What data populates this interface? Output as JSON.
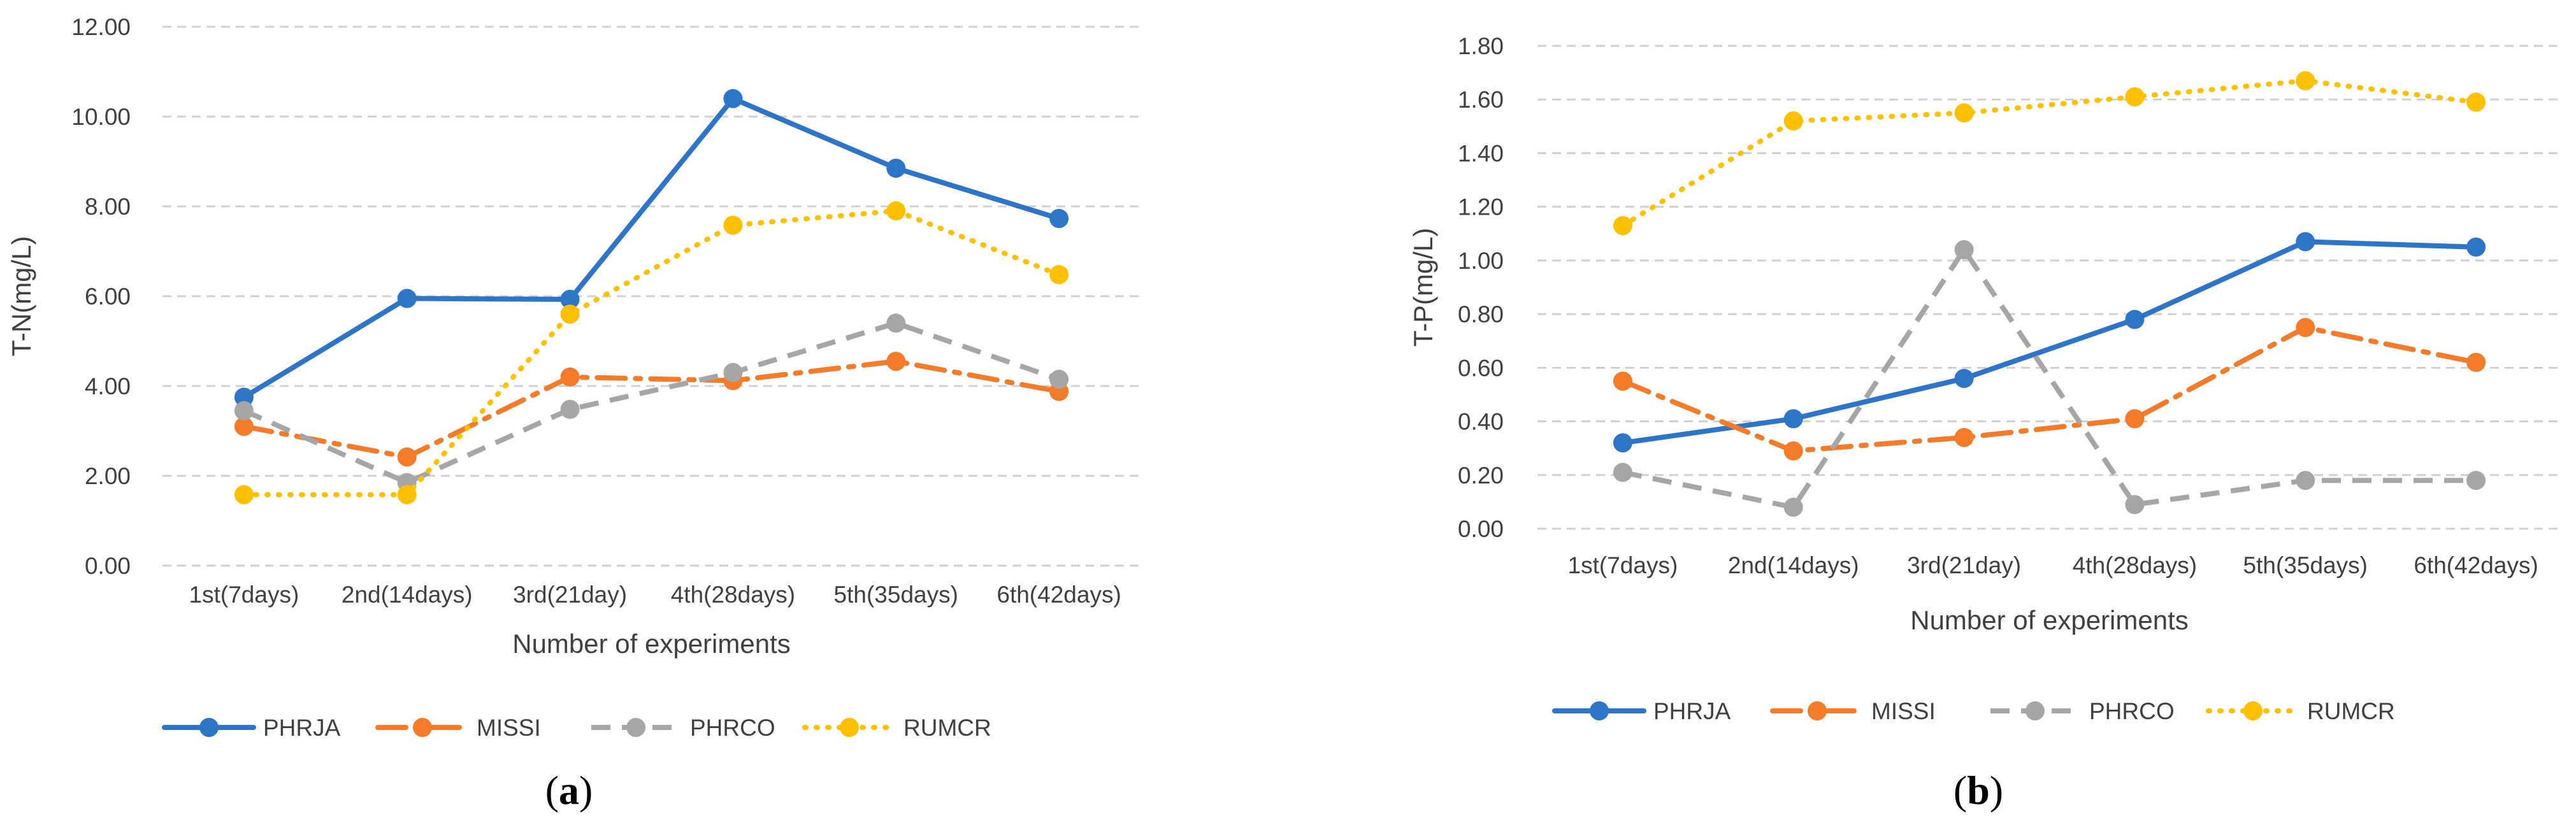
{
  "colors": {
    "PHRJA": "#2E75C8",
    "MISSI": "#F47B2A",
    "PHRCO": "#A6A6A6",
    "RUMCR": "#FFC000"
  },
  "chart_data": [
    {
      "type": "line",
      "panel": "(a)",
      "panel_letter": "a",
      "title": "",
      "xlabel": "Number of experiments",
      "ylabel": "T-N(mg/L)",
      "ylim": [
        0,
        12
      ],
      "yticks": [
        "0.00",
        "2.00",
        "4.00",
        "6.00",
        "8.00",
        "10.00",
        "12.00"
      ],
      "categories": [
        "1st(7days)",
        "2nd(14days)",
        "3rd(21day)",
        "4th(28days)",
        "5th(35days)",
        "6th(42days)"
      ],
      "series": [
        {
          "name": "PHRJA",
          "values": [
            3.75,
            5.95,
            5.93,
            10.4,
            8.85,
            7.73
          ]
        },
        {
          "name": "MISSI",
          "values": [
            3.1,
            2.42,
            4.2,
            4.12,
            4.55,
            3.88
          ]
        },
        {
          "name": "PHRCO",
          "values": [
            3.45,
            1.85,
            3.48,
            4.3,
            5.4,
            4.15
          ]
        },
        {
          "name": "RUMCR",
          "values": [
            1.58,
            1.58,
            5.6,
            7.58,
            7.9,
            6.48
          ]
        }
      ],
      "legend": [
        "PHRJA",
        "MISSI",
        "PHRCO",
        "RUMCR"
      ]
    },
    {
      "type": "line",
      "panel": "(b)",
      "panel_letter": "b",
      "title": "",
      "xlabel": "Number of experiments",
      "ylabel": "T-P(mg/L)",
      "ylim": [
        0,
        1.8
      ],
      "yticks": [
        "0.00",
        "0.20",
        "0.40",
        "0.60",
        "0.80",
        "1.00",
        "1.20",
        "1.40",
        "1.60",
        "1.80"
      ],
      "categories": [
        "1st(7days)",
        "2nd(14days)",
        "3rd(21day)",
        "4th(28days)",
        "5th(35days)",
        "6th(42days)"
      ],
      "series": [
        {
          "name": "PHRJA",
          "values": [
            0.32,
            0.41,
            0.56,
            0.78,
            1.07,
            1.05
          ]
        },
        {
          "name": "MISSI",
          "values": [
            0.55,
            0.29,
            0.34,
            0.41,
            0.75,
            0.62
          ]
        },
        {
          "name": "PHRCO",
          "values": [
            0.21,
            0.08,
            1.04,
            0.09,
            0.18,
            0.18
          ]
        },
        {
          "name": "RUMCR",
          "values": [
            1.13,
            1.52,
            1.55,
            1.61,
            1.67,
            1.59
          ]
        }
      ],
      "legend": [
        "PHRJA",
        "MISSI",
        "PHRCO",
        "RUMCR"
      ]
    }
  ]
}
